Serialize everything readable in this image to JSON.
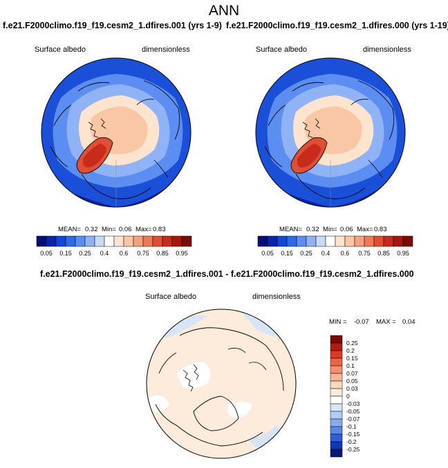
{
  "title": "ANN",
  "panels": [
    {
      "subtitle": "f.e21.F2000climo.f19_f19.cesm2_1.dfires.001 (yrs 1-9)",
      "var_label": "Surface albedo",
      "units_label": "dimensionless",
      "mean_label": "MEAN=",
      "mean": "0.32",
      "min_label": "Min=",
      "min": "0.06",
      "max_label": "Max=",
      "max": "0.83"
    },
    {
      "subtitle": "f.e21.F2000climo.f19_f19.cesm2_1.dfires.000 (yrs 1-19)",
      "var_label": "Surface albedo",
      "units_label": "dimensionless",
      "mean_label": "MEAN=",
      "mean": "0.32",
      "min_label": "Min=",
      "min": "0.06",
      "max_label": "Max=",
      "max": "0.83"
    }
  ],
  "diff": {
    "subtitle": "f.e21.F2000climo.f19_f19.cesm2_1.dfires.001 - f.e21.F2000climo.f19_f19.cesm2_1.dfires.000",
    "var_label": "Surface albedo",
    "units_label": "dimensionless",
    "min_label": "MIN =",
    "min": "-0.07",
    "max_label": "MAX =",
    "max": "0.04"
  },
  "chart_data": [
    {
      "type": "heatmap",
      "projection": "north polar stereographic",
      "variable": "Surface albedo",
      "units": "dimensionless",
      "colorbar": {
        "labels": [
          "0.05",
          "0.15",
          "0.25",
          "0.4",
          "0.6",
          "0.75",
          "0.85",
          "0.95"
        ],
        "colors": [
          "#050f73",
          "#0a24a8",
          "#1447d6",
          "#2f6ae8",
          "#5b8ef0",
          "#8fb3f5",
          "#c6daf9",
          "#ffffff",
          "#fde4cf",
          "#f9c7a6",
          "#f4a27e",
          "#ec7a58",
          "#df4f34",
          "#c72b1c",
          "#a3170f",
          "#7a0a06"
        ]
      },
      "stats": {
        "mean": 0.32,
        "min": 0.06,
        "max": 0.83
      }
    },
    {
      "type": "heatmap",
      "projection": "north polar stereographic",
      "variable": "Surface albedo",
      "units": "dimensionless",
      "colorbar": {
        "labels": [
          "0.05",
          "0.15",
          "0.25",
          "0.4",
          "0.6",
          "0.75",
          "0.85",
          "0.95"
        ],
        "colors": [
          "#050f73",
          "#0a24a8",
          "#1447d6",
          "#2f6ae8",
          "#5b8ef0",
          "#8fb3f5",
          "#c6daf9",
          "#ffffff",
          "#fde4cf",
          "#f9c7a6",
          "#f4a27e",
          "#ec7a58",
          "#df4f34",
          "#c72b1c",
          "#a3170f",
          "#7a0a06"
        ]
      },
      "stats": {
        "mean": 0.32,
        "min": 0.06,
        "max": 0.83
      }
    },
    {
      "type": "heatmap",
      "projection": "north polar stereographic",
      "variable": "Surface albedo",
      "units": "dimensionless",
      "colorbar": {
        "orientation": "vertical",
        "labels": [
          "0.25",
          "0.2",
          "0.15",
          "0.1",
          "0.07",
          "0.05",
          "0.03",
          "0",
          "-0.03",
          "-0.05",
          "-0.07",
          "-0.1",
          "-0.15",
          "-0.2",
          "-0.25"
        ],
        "colors": [
          "#7a0a06",
          "#b01d10",
          "#d83a22",
          "#ea6543",
          "#f39170",
          "#f8b794",
          "#fcd6bd",
          "#fdebdc",
          "#ffffff",
          "#d7e5f9",
          "#b2cdf5",
          "#85acee",
          "#5887e6",
          "#2d5fd6",
          "#1237b5",
          "#061878"
        ]
      },
      "stats": {
        "min": -0.07,
        "max": 0.04
      }
    }
  ]
}
